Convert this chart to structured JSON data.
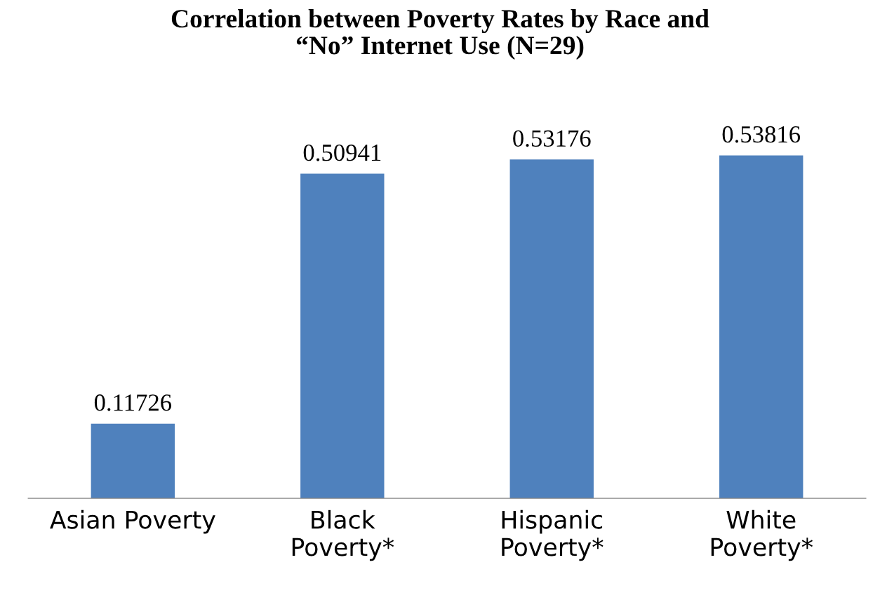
{
  "chart_data": {
    "type": "bar",
    "title": "Correlation between Poverty Rates by Race and\n“No” Internet Use (N=29)",
    "categories": [
      "Asian Poverty",
      "Black\nPoverty*",
      "Hispanic\nPoverty*",
      "White\nPoverty*"
    ],
    "values": [
      0.11726,
      0.50941,
      0.53176,
      0.53816
    ],
    "color": "#4f81bd",
    "data_labels": true,
    "grid": false,
    "legend": false
  }
}
